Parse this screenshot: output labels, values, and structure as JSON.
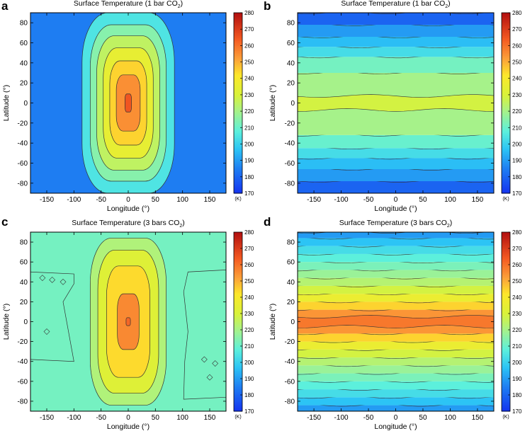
{
  "colorbar": {
    "min": 170,
    "max": 280,
    "step": 10,
    "ticks": [
      "170",
      "180",
      "190",
      "200",
      "210",
      "220",
      "230",
      "240",
      "250",
      "260",
      "270",
      "280"
    ],
    "unit_label": "(K)"
  },
  "palette_stops": [
    {
      "t": 170,
      "color": "#1433f0"
    },
    {
      "t": 185,
      "color": "#1e7df2"
    },
    {
      "t": 197,
      "color": "#2cc4f5"
    },
    {
      "t": 208,
      "color": "#5cf0dc"
    },
    {
      "t": 220,
      "color": "#a6f28a"
    },
    {
      "t": 230,
      "color": "#d8f23a"
    },
    {
      "t": 242,
      "color": "#fde82a"
    },
    {
      "t": 252,
      "color": "#fca13a"
    },
    {
      "t": 264,
      "color": "#f45a22"
    },
    {
      "t": 280,
      "color": "#b31010"
    }
  ],
  "chart_data": [
    {
      "panel": "a",
      "type": "heatmap",
      "title": "Surface Temperature (1 bar CO",
      "title_sub": "2",
      "title_end": ")",
      "xlabel": "Longitude (°)",
      "ylabel": "Latitude (°)",
      "xlim": [
        -180,
        180
      ],
      "ylim": [
        -90,
        90
      ],
      "xticks": [
        "-150",
        "-100",
        "-50",
        "0",
        "50",
        "100",
        "150"
      ],
      "yticks": [
        "80",
        "60",
        "40",
        "20",
        "0",
        "-20",
        "-40",
        "-60",
        "-80"
      ],
      "pattern": "substellar",
      "background_temp": 185,
      "contours": [
        {
          "temp": 205,
          "lon_r": 85,
          "lat_r": 90
        },
        {
          "temp": 215,
          "lon_r": 70,
          "lat_r": 78
        },
        {
          "temp": 225,
          "lon_r": 58,
          "lat_r": 67
        },
        {
          "temp": 235,
          "lon_r": 46,
          "lat_r": 55
        },
        {
          "temp": 245,
          "lon_r": 34,
          "lat_r": 42
        },
        {
          "temp": 255,
          "lon_r": 22,
          "lat_r": 28
        },
        {
          "temp": 265,
          "lon_r": 6,
          "lat_r": 9
        }
      ]
    },
    {
      "panel": "b",
      "type": "heatmap",
      "title": "Surface Temperature (1 bar CO",
      "title_sub": "2",
      "title_end": ")",
      "xlabel": "Longitude (°)",
      "ylabel": "Latitude (°)",
      "xlim": [
        -180,
        180
      ],
      "ylim": [
        -90,
        90
      ],
      "xticks": [
        "-150",
        "-100",
        "-50",
        "0",
        "50",
        "100",
        "150"
      ],
      "yticks": [
        "80",
        "60",
        "40",
        "20",
        "0",
        "-20",
        "-40",
        "-60",
        "-80"
      ],
      "pattern": "zonal",
      "bands": [
        {
          "lat_min": -90,
          "lat_max": -78,
          "temp": 180
        },
        {
          "lat_min": -78,
          "lat_max": -66,
          "temp": 190
        },
        {
          "lat_min": -66,
          "lat_max": -55,
          "temp": 196
        },
        {
          "lat_min": -55,
          "lat_max": -45,
          "temp": 203
        },
        {
          "lat_min": -45,
          "lat_max": -32,
          "temp": 210
        },
        {
          "lat_min": -32,
          "lat_max": 30,
          "temp": 220
        },
        {
          "lat_min": 30,
          "lat_max": 46,
          "temp": 212
        },
        {
          "lat_min": 46,
          "lat_max": 56,
          "temp": 203
        },
        {
          "lat_min": 56,
          "lat_max": 66,
          "temp": 196
        },
        {
          "lat_min": 66,
          "lat_max": 78,
          "temp": 190
        },
        {
          "lat_min": 78,
          "lat_max": 90,
          "temp": 180
        }
      ],
      "equator_temp": 229,
      "equator_lat": 7
    },
    {
      "panel": "c",
      "type": "heatmap",
      "title": "Surface Temperature (3 bars CO",
      "title_sub": "2",
      "title_end": ")",
      "xlabel": "Longitude (°)",
      "ylabel": "Latitude (°)",
      "xlim": [
        -180,
        180
      ],
      "ylim": [
        -90,
        90
      ],
      "xticks": [
        "-150",
        "-100",
        "-50",
        "0",
        "50",
        "100",
        "150"
      ],
      "yticks": [
        "80",
        "60",
        "40",
        "20",
        "0",
        "-20",
        "-40",
        "-60",
        "-80"
      ],
      "pattern": "substellar",
      "background_temp": 212,
      "contours": [
        {
          "temp": 222,
          "lon_r": 70,
          "lat_r": 84
        },
        {
          "temp": 232,
          "lon_r": 56,
          "lat_r": 72
        },
        {
          "temp": 244,
          "lon_r": 40,
          "lat_r": 56
        },
        {
          "temp": 256,
          "lon_r": 20,
          "lat_r": 28
        },
        {
          "temp": 262,
          "lon_r": 4,
          "lat_r": 4
        }
      ]
    },
    {
      "panel": "d",
      "type": "heatmap",
      "title": "Surface Temperature (3 bars CO",
      "title_sub": "2",
      "title_end": ")",
      "xlabel": "Longitude (°)",
      "ylabel": "Latitude (°)",
      "xlim": [
        -180,
        180
      ],
      "ylim": [
        -90,
        90
      ],
      "xticks": [
        "-150",
        "-100",
        "-50",
        "0",
        "50",
        "100",
        "150"
      ],
      "yticks": [
        "80",
        "60",
        "40",
        "20",
        "0",
        "-20",
        "-40",
        "-60",
        "-80"
      ],
      "pattern": "zonal",
      "bands": [
        {
          "lat_min": -90,
          "lat_max": -84,
          "temp": 190
        },
        {
          "lat_min": -84,
          "lat_max": -76,
          "temp": 197
        },
        {
          "lat_min": -76,
          "lat_max": -68,
          "temp": 203
        },
        {
          "lat_min": -68,
          "lat_max": -60,
          "temp": 208
        },
        {
          "lat_min": -60,
          "lat_max": -52,
          "temp": 213
        },
        {
          "lat_min": -52,
          "lat_max": -44,
          "temp": 218
        },
        {
          "lat_min": -44,
          "lat_max": -36,
          "temp": 223
        },
        {
          "lat_min": -36,
          "lat_max": -28,
          "temp": 229
        },
        {
          "lat_min": -28,
          "lat_max": -20,
          "temp": 236
        },
        {
          "lat_min": -20,
          "lat_max": -12,
          "temp": 245
        },
        {
          "lat_min": -12,
          "lat_max": 12,
          "temp": 254
        },
        {
          "lat_min": 12,
          "lat_max": 20,
          "temp": 245
        },
        {
          "lat_min": 20,
          "lat_max": 28,
          "temp": 236
        },
        {
          "lat_min": 28,
          "lat_max": 36,
          "temp": 229
        },
        {
          "lat_min": 36,
          "lat_max": 44,
          "temp": 223
        },
        {
          "lat_min": 44,
          "lat_max": 52,
          "temp": 218
        },
        {
          "lat_min": 52,
          "lat_max": 60,
          "temp": 213
        },
        {
          "lat_min": 60,
          "lat_max": 68,
          "temp": 208
        },
        {
          "lat_min": 68,
          "lat_max": 76,
          "temp": 203
        },
        {
          "lat_min": 76,
          "lat_max": 84,
          "temp": 197
        },
        {
          "lat_min": 84,
          "lat_max": 90,
          "temp": 190
        }
      ],
      "equator_temp": 259,
      "equator_lat": 5
    }
  ]
}
